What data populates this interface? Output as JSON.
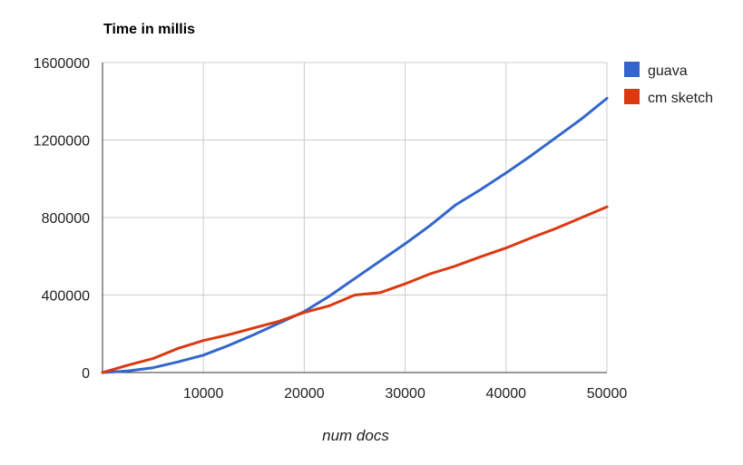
{
  "chart_data": {
    "type": "line",
    "title": "Time in millis",
    "xlabel": "num docs",
    "ylabel": "",
    "xlim": [
      0,
      50000
    ],
    "ylim": [
      0,
      1600000
    ],
    "x_ticks": [
      10000,
      20000,
      30000,
      40000,
      50000
    ],
    "x_tick_labels": [
      "10000",
      "20000",
      "30000",
      "40000",
      "50000"
    ],
    "y_ticks": [
      0,
      400000,
      800000,
      1200000,
      1600000
    ],
    "y_tick_labels": [
      "0",
      "400000",
      "800000",
      "1200000",
      "1600000"
    ],
    "grid": true,
    "legend_position": "right",
    "x": [
      0,
      2500,
      5000,
      7500,
      10000,
      12500,
      15000,
      17500,
      20000,
      22500,
      25000,
      27500,
      30000,
      32500,
      35000,
      37500,
      40000,
      42500,
      45000,
      47500,
      50000
    ],
    "series": [
      {
        "name": "guava",
        "color": "#3366cc",
        "values": [
          0,
          8000,
          25000,
          55000,
          90000,
          140000,
          195000,
          255000,
          315000,
          395000,
          485000,
          575000,
          665000,
          760000,
          865000,
          945000,
          1030000,
          1120000,
          1215000,
          1310000,
          1415000
        ]
      },
      {
        "name": "cm sketch",
        "color": "#dc3912",
        "values": [
          0,
          38000,
          72000,
          125000,
          165000,
          195000,
          230000,
          265000,
          310000,
          345000,
          400000,
          412000,
          458000,
          510000,
          550000,
          598000,
          643000,
          695000,
          745000,
          800000,
          855000
        ]
      }
    ]
  }
}
